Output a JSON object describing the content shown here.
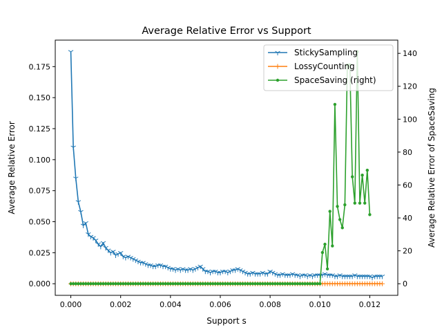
{
  "chart_data": {
    "type": "line",
    "title": "Average Relative Error vs Support",
    "xlabel": "Support s",
    "ylabel_left": "Average Relative Error",
    "ylabel_right": "Average Relative Error of SpaceSaving",
    "xlim": [
      -0.000625,
      0.013125
    ],
    "ylim_left": [
      -0.00935,
      0.19635
    ],
    "ylim_right": [
      -7.05,
      148.05
    ],
    "x_ticks": [
      0.0,
      0.002,
      0.004,
      0.006,
      0.008,
      0.01,
      0.012
    ],
    "x_tick_labels": [
      "0.000",
      "0.002",
      "0.004",
      "0.006",
      "0.008",
      "0.010",
      "0.012"
    ],
    "y_left_ticks": [
      0.0,
      0.025,
      0.05,
      0.075,
      0.1,
      0.125,
      0.15,
      0.175
    ],
    "y_left_tick_labels": [
      "0.000",
      "0.025",
      "0.050",
      "0.075",
      "0.100",
      "0.125",
      "0.150",
      "0.175"
    ],
    "y_right_ticks": [
      0,
      20,
      40,
      60,
      80,
      100,
      120,
      140
    ],
    "y_right_tick_labels": [
      "0",
      "20",
      "40",
      "60",
      "80",
      "100",
      "120",
      "140"
    ],
    "grid": false,
    "legend_position": "top-right",
    "legend": [
      {
        "label": "StickySampling",
        "color": "#1f77b4",
        "marker": "tri_down"
      },
      {
        "label": "LossyCounting",
        "color": "#ff7f0e",
        "marker": "plus"
      },
      {
        "label": "SpaceSaving (right)",
        "color": "#2ca02c",
        "marker": "dot"
      }
    ],
    "x_range": {
      "start": 0.0,
      "step": 0.0001,
      "count": 126
    },
    "series": [
      {
        "name": "StickySampling",
        "axis": "left",
        "color": "#1f77b4",
        "values": [
          0.187,
          0.11,
          0.085,
          0.066,
          0.058,
          0.047,
          0.049,
          0.04,
          0.038,
          0.037,
          0.035,
          0.032,
          0.03,
          0.033,
          0.029,
          0.027,
          0.025,
          0.026,
          0.023,
          0.024,
          0.025,
          0.022,
          0.021,
          0.022,
          0.021,
          0.02,
          0.019,
          0.018,
          0.017,
          0.017,
          0.016,
          0.015,
          0.015,
          0.014,
          0.014,
          0.015,
          0.015,
          0.014,
          0.014,
          0.013,
          0.012,
          0.012,
          0.011,
          0.012,
          0.011,
          0.012,
          0.011,
          0.011,
          0.012,
          0.011,
          0.012,
          0.013,
          0.014,
          0.012,
          0.01,
          0.01,
          0.009,
          0.01,
          0.01,
          0.009,
          0.009,
          0.01,
          0.01,
          0.009,
          0.01,
          0.011,
          0.011,
          0.012,
          0.011,
          0.01,
          0.009,
          0.008,
          0.008,
          0.009,
          0.008,
          0.008,
          0.008,
          0.009,
          0.008,
          0.008,
          0.01,
          0.009,
          0.008,
          0.007,
          0.007,
          0.008,
          0.007,
          0.007,
          0.007,
          0.008,
          0.007,
          0.007,
          0.006,
          0.007,
          0.007,
          0.006,
          0.007,
          0.006,
          0.007,
          0.007,
          0.007,
          0.007,
          0.008,
          0.007,
          0.007,
          0.007,
          0.006,
          0.006,
          0.007,
          0.006,
          0.006,
          0.006,
          0.006,
          0.006,
          0.007,
          0.006,
          0.006,
          0.006,
          0.006,
          0.006,
          0.006,
          0.005,
          0.006,
          0.006,
          0.006,
          0.006
        ]
      },
      {
        "name": "LossyCounting",
        "axis": "left",
        "color": "#ff7f0e",
        "values": [
          0,
          0,
          0,
          0,
          0,
          0,
          0,
          0,
          0,
          0,
          0,
          0,
          0,
          0,
          0,
          0,
          0,
          0,
          0,
          0,
          0,
          0,
          0,
          0,
          0,
          0,
          0,
          0,
          0,
          0,
          0,
          0,
          0,
          0,
          0,
          0,
          0,
          0,
          0,
          0,
          0,
          0,
          0,
          0,
          0,
          0,
          0,
          0,
          0,
          0,
          0,
          0,
          0,
          0,
          0,
          0,
          0,
          0,
          0,
          0,
          0,
          0,
          0,
          0,
          0,
          0,
          0,
          0,
          0,
          0,
          0,
          0,
          0,
          0,
          0,
          0,
          0,
          0,
          0,
          0,
          0,
          0,
          0,
          0,
          0,
          0,
          0,
          0,
          0,
          0,
          0,
          0,
          0,
          0,
          0,
          0,
          0,
          0,
          0,
          0,
          0,
          0,
          0,
          0,
          0,
          0,
          0,
          0,
          0,
          0,
          0,
          0,
          0,
          0,
          0,
          0,
          0,
          0,
          0,
          0,
          0,
          0,
          0,
          0,
          0,
          0
        ]
      },
      {
        "name": "SpaceSaving (right)",
        "axis": "right",
        "color": "#2ca02c",
        "values": [
          0,
          0,
          0,
          0,
          0,
          0,
          0,
          0,
          0,
          0,
          0,
          0,
          0,
          0,
          0,
          0,
          0,
          0,
          0,
          0,
          0,
          0,
          0,
          0,
          0,
          0,
          0,
          0,
          0,
          0,
          0,
          0,
          0,
          0,
          0,
          0,
          0,
          0,
          0,
          0,
          0,
          0,
          0,
          0,
          0,
          0,
          0,
          0,
          0,
          0,
          0,
          0,
          0,
          0,
          0,
          0,
          0,
          0,
          0,
          0,
          0,
          0,
          0,
          0,
          0,
          0,
          0,
          0,
          0,
          0,
          0,
          0,
          0,
          0,
          0,
          0,
          0,
          0,
          0,
          0,
          0,
          0,
          0,
          0,
          0,
          0,
          0,
          0,
          0,
          0,
          0,
          0,
          0,
          0,
          0,
          0,
          0,
          0,
          0,
          0,
          0,
          19,
          24,
          9,
          44,
          23,
          109,
          47,
          39,
          34,
          48,
          133,
          133,
          65,
          49,
          141,
          49,
          66,
          49,
          69,
          42
        ]
      }
    ]
  }
}
